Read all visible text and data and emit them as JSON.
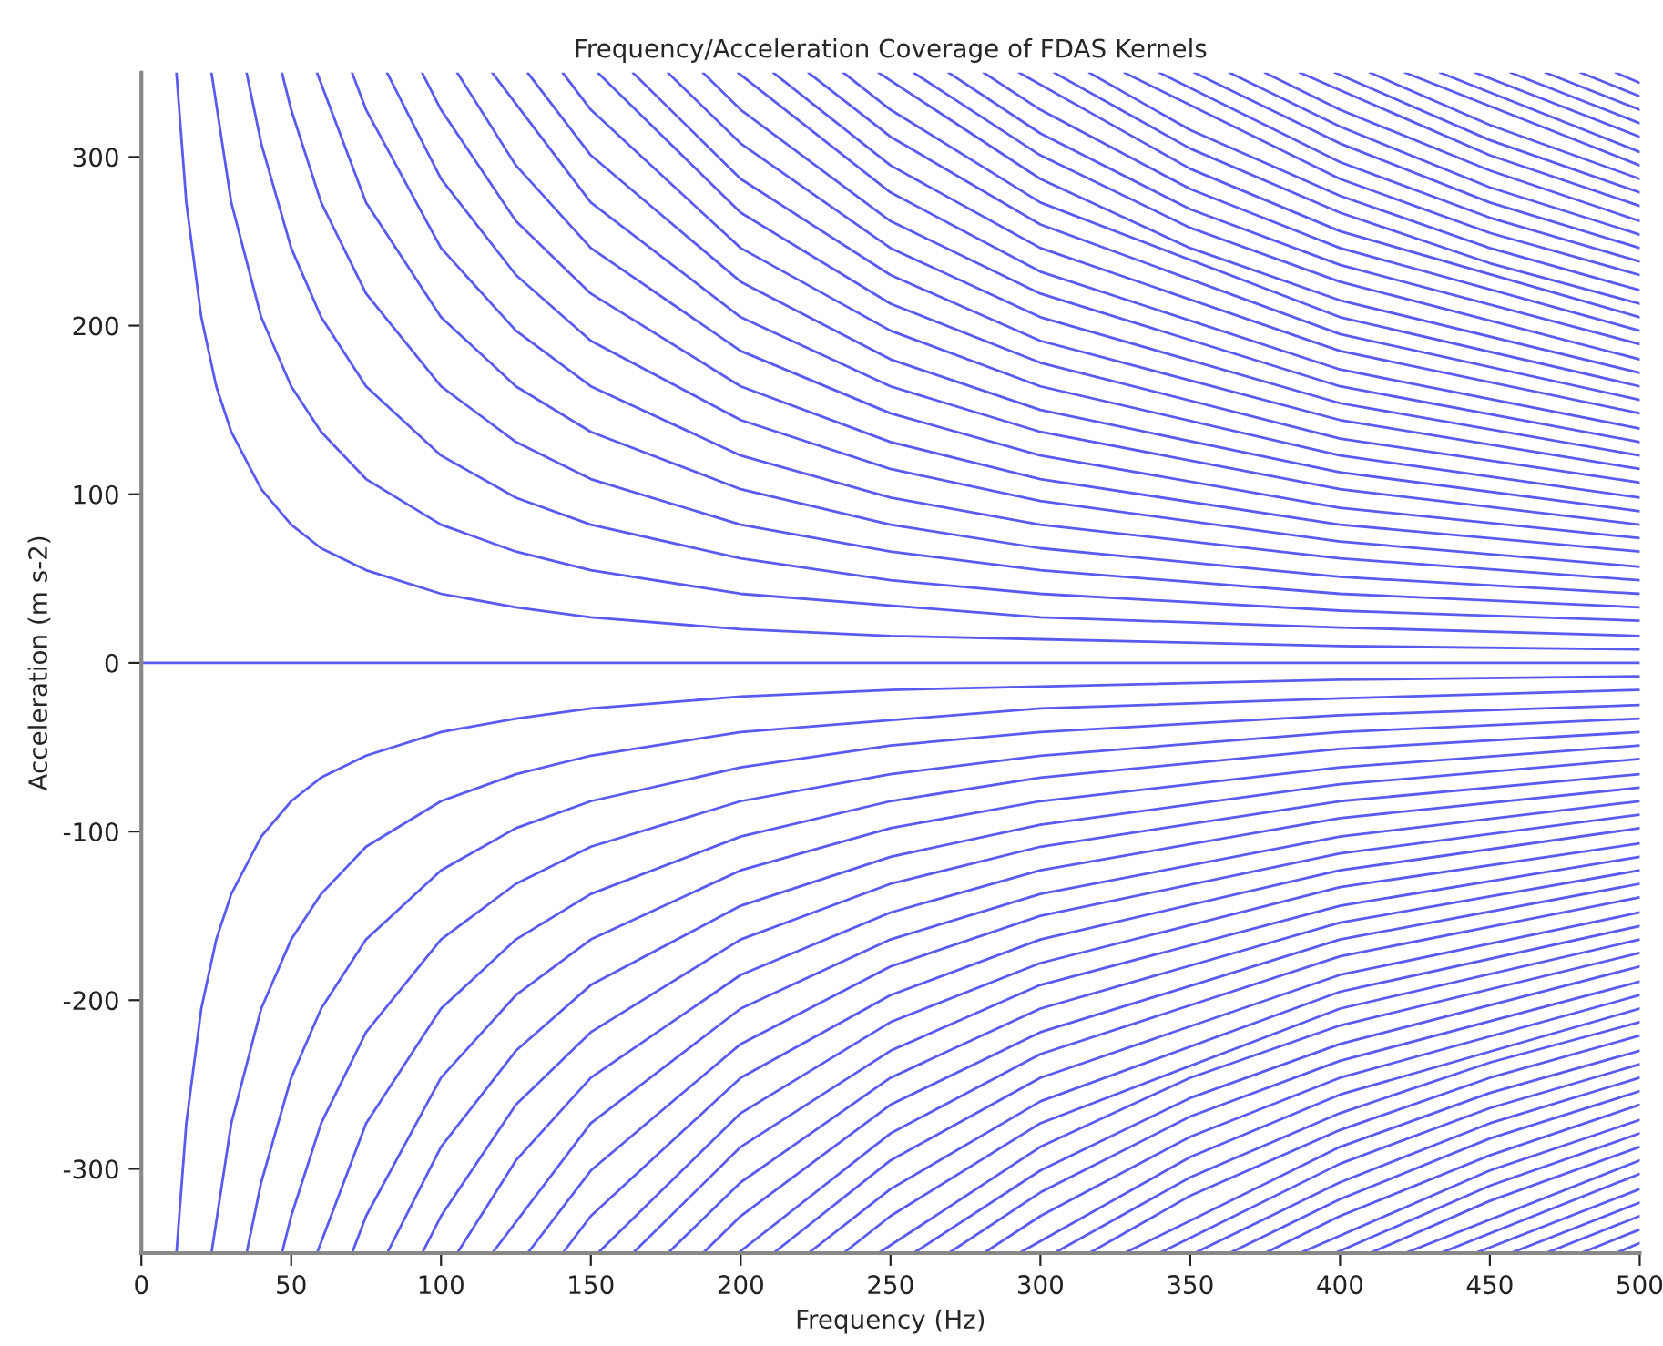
{
  "chart_data": {
    "type": "line",
    "title": "Frequency/Acceleration Coverage of FDAS Kernels",
    "xlabel": "Frequency (Hz)",
    "ylabel": "Acceleration (m s-2)",
    "xlim": [
      0,
      500
    ],
    "ylim": [
      -350,
      350
    ],
    "xticks": [
      0,
      50,
      100,
      150,
      200,
      250,
      300,
      350,
      400,
      450,
      500
    ],
    "yticks": [
      -300,
      -200,
      -100,
      0,
      100,
      200,
      300
    ],
    "grid": false,
    "legend": false,
    "marker": "none",
    "line_style": "solid",
    "series": [
      {
        "color": "#5a5af0",
        "x": [
          0,
          500
        ],
        "values": [
          0,
          0
        ]
      },
      {
        "color": "#5a5af0",
        "x": [
          11.7,
          15,
          20,
          25,
          30,
          40,
          50,
          60,
          75,
          100,
          125,
          150,
          200,
          250,
          300,
          400,
          500
        ],
        "values": [
          350,
          273,
          205,
          164,
          137,
          103,
          82,
          68,
          55,
          41,
          33,
          27,
          20,
          16,
          14,
          10,
          8
        ]
      },
      {
        "color": "#5a5af0",
        "x": [
          23.4,
          30,
          40,
          50,
          60,
          75,
          100,
          125,
          150,
          200,
          300,
          400,
          500
        ],
        "values": [
          350,
          273,
          205,
          164,
          137,
          109,
          82,
          66,
          55,
          41,
          27,
          21,
          16
        ]
      },
      {
        "color": "#5a5af0",
        "x": [
          35.1,
          40,
          50,
          60,
          75,
          100,
          125,
          150,
          200,
          250,
          300,
          400,
          500
        ],
        "values": [
          350,
          308,
          246,
          205,
          164,
          123,
          98,
          82,
          62,
          49,
          41,
          31,
          25
        ]
      },
      {
        "color": "#5a5af0",
        "x": [
          46.9,
          50,
          60,
          75,
          100,
          125,
          150,
          200,
          250,
          300,
          400,
          500
        ],
        "values": [
          350,
          328,
          273,
          219,
          164,
          131,
          109,
          82,
          66,
          55,
          41,
          33
        ]
      },
      {
        "color": "#5a5af0",
        "x": [
          58.6,
          75,
          100,
          125,
          150,
          200,
          250,
          300,
          400,
          500
        ],
        "values": [
          350,
          273,
          205,
          164,
          137,
          103,
          82,
          68,
          51,
          41
        ]
      },
      {
        "color": "#5a5af0",
        "x": [
          70.3,
          75,
          100,
          125,
          150,
          200,
          250,
          300,
          400,
          500
        ],
        "values": [
          350,
          328,
          246,
          197,
          164,
          123,
          98,
          82,
          62,
          49
        ]
      },
      {
        "color": "#5a5af0",
        "x": [
          82,
          100,
          125,
          150,
          200,
          250,
          300,
          400,
          500
        ],
        "values": [
          350,
          287,
          230,
          191,
          144,
          115,
          96,
          72,
          57
        ]
      },
      {
        "color": "#5a5af0",
        "x": [
          93.7,
          100,
          125,
          150,
          200,
          250,
          300,
          400,
          500
        ],
        "values": [
          350,
          328,
          262,
          219,
          164,
          131,
          109,
          82,
          66
        ]
      },
      {
        "color": "#5a5af0",
        "x": [
          105.4,
          125,
          150,
          200,
          250,
          300,
          400,
          500
        ],
        "values": [
          350,
          295,
          246,
          185,
          148,
          123,
          92,
          74
        ]
      },
      {
        "color": "#5a5af0",
        "x": [
          117.1,
          150,
          200,
          250,
          300,
          400,
          500
        ],
        "values": [
          350,
          273,
          205,
          164,
          137,
          103,
          82
        ]
      },
      {
        "color": "#5a5af0",
        "x": [
          128.9,
          150,
          200,
          250,
          300,
          400,
          500
        ],
        "values": [
          350,
          301,
          226,
          180,
          150,
          113,
          90
        ]
      },
      {
        "color": "#5a5af0",
        "x": [
          140.6,
          150,
          200,
          250,
          300,
          400,
          500
        ],
        "values": [
          350,
          328,
          246,
          197,
          164,
          123,
          98
        ]
      },
      {
        "color": "#5a5af0",
        "x": [
          152.3,
          200,
          250,
          300,
          400,
          500
        ],
        "values": [
          350,
          267,
          213,
          178,
          133,
          107
        ]
      },
      {
        "color": "#5a5af0",
        "x": [
          164,
          200,
          250,
          300,
          400,
          500
        ],
        "values": [
          350,
          287,
          230,
          191,
          144,
          115
        ]
      },
      {
        "color": "#5a5af0",
        "x": [
          175.7,
          200,
          250,
          300,
          400,
          500
        ],
        "values": [
          350,
          308,
          246,
          205,
          154,
          123
        ]
      },
      {
        "color": "#5a5af0",
        "x": [
          187.4,
          200,
          250,
          300,
          400,
          500
        ],
        "values": [
          350,
          328,
          262,
          219,
          164,
          131
        ]
      },
      {
        "color": "#5a5af0",
        "x": [
          199.1,
          250,
          300,
          400,
          500
        ],
        "values": [
          350,
          279,
          232,
          174,
          139
        ]
      },
      {
        "color": "#5a5af0",
        "x": [
          210.9,
          250,
          300,
          400,
          500
        ],
        "values": [
          350,
          295,
          246,
          185,
          148
        ]
      },
      {
        "color": "#5a5af0",
        "x": [
          222.6,
          250,
          300,
          400,
          500
        ],
        "values": [
          350,
          312,
          260,
          195,
          156
        ]
      },
      {
        "color": "#5a5af0",
        "x": [
          234.3,
          250,
          300,
          400,
          500
        ],
        "values": [
          350,
          328,
          273,
          205,
          164
        ]
      },
      {
        "color": "#5a5af0",
        "x": [
          246,
          300,
          350,
          400,
          500
        ],
        "values": [
          350,
          287,
          246,
          215,
          172
        ]
      },
      {
        "color": "#5a5af0",
        "x": [
          257.7,
          300,
          350,
          400,
          500
        ],
        "values": [
          350,
          301,
          258,
          226,
          180
        ]
      },
      {
        "color": "#5a5af0",
        "x": [
          269.4,
          300,
          350,
          400,
          500
        ],
        "values": [
          350,
          314,
          269,
          236,
          189
        ]
      },
      {
        "color": "#5a5af0",
        "x": [
          281.1,
          300,
          350,
          400,
          500
        ],
        "values": [
          350,
          328,
          281,
          246,
          197
        ]
      },
      {
        "color": "#5a5af0",
        "x": [
          292.9,
          350,
          400,
          500
        ],
        "values": [
          350,
          293,
          256,
          205
        ]
      },
      {
        "color": "#5a5af0",
        "x": [
          304.6,
          350,
          400,
          450,
          500
        ],
        "values": [
          350,
          305,
          267,
          237,
          213
        ]
      },
      {
        "color": "#5a5af0",
        "x": [
          316.3,
          350,
          400,
          450,
          500
        ],
        "values": [
          350,
          316,
          277,
          246,
          221
        ]
      },
      {
        "color": "#5a5af0",
        "x": [
          328,
          400,
          450,
          500
        ],
        "values": [
          350,
          287,
          255,
          230
        ]
      },
      {
        "color": "#5a5af0",
        "x": [
          339.7,
          400,
          450,
          500
        ],
        "values": [
          350,
          297,
          264,
          238
        ]
      },
      {
        "color": "#5a5af0",
        "x": [
          351.4,
          400,
          450,
          500
        ],
        "values": [
          350,
          308,
          273,
          246
        ]
      },
      {
        "color": "#5a5af0",
        "x": [
          363.1,
          400,
          450,
          500
        ],
        "values": [
          350,
          318,
          282,
          254
        ]
      },
      {
        "color": "#5a5af0",
        "x": [
          374.9,
          400,
          450,
          500
        ],
        "values": [
          350,
          328,
          292,
          262
        ]
      },
      {
        "color": "#5a5af0",
        "x": [
          386.6,
          450,
          500
        ],
        "values": [
          350,
          301,
          271
        ]
      },
      {
        "color": "#5a5af0",
        "x": [
          398.3,
          450,
          500
        ],
        "values": [
          350,
          310,
          279
        ]
      },
      {
        "color": "#5a5af0",
        "x": [
          410,
          450,
          500
        ],
        "values": [
          350,
          319,
          287
        ]
      },
      {
        "color": "#5a5af0",
        "x": [
          421.7,
          500
        ],
        "values": [
          350,
          295
        ]
      },
      {
        "color": "#5a5af0",
        "x": [
          433.4,
          500
        ],
        "values": [
          350,
          303
        ]
      },
      {
        "color": "#5a5af0",
        "x": [
          445.1,
          500
        ],
        "values": [
          350,
          312
        ]
      },
      {
        "color": "#5a5af0",
        "x": [
          456.9,
          500
        ],
        "values": [
          350,
          320
        ]
      },
      {
        "color": "#5a5af0",
        "x": [
          468.6,
          500
        ],
        "values": [
          350,
          328
        ]
      },
      {
        "color": "#5a5af0",
        "x": [
          480.3,
          500
        ],
        "values": [
          350,
          336
        ]
      },
      {
        "color": "#5a5af0",
        "x": [
          492,
          500
        ],
        "values": [
          350,
          344
        ]
      },
      {
        "color": "#5a5af0",
        "x": [
          11.7,
          15,
          20,
          25,
          30,
          40,
          50,
          60,
          75,
          100,
          125,
          150,
          200,
          250,
          300,
          400,
          500
        ],
        "values": [
          -350,
          -273,
          -205,
          -164,
          -137,
          -103,
          -82,
          -68,
          -55,
          -41,
          -33,
          -27,
          -20,
          -16,
          -14,
          -10,
          -8
        ]
      },
      {
        "color": "#5a5af0",
        "x": [
          23.4,
          30,
          40,
          50,
          60,
          75,
          100,
          125,
          150,
          200,
          300,
          400,
          500
        ],
        "values": [
          -350,
          -273,
          -205,
          -164,
          -137,
          -109,
          -82,
          -66,
          -55,
          -41,
          -27,
          -21,
          -16
        ]
      },
      {
        "color": "#5a5af0",
        "x": [
          35.1,
          40,
          50,
          60,
          75,
          100,
          125,
          150,
          200,
          250,
          300,
          400,
          500
        ],
        "values": [
          -350,
          -308,
          -246,
          -205,
          -164,
          -123,
          -98,
          -82,
          -62,
          -49,
          -41,
          -31,
          -25
        ]
      },
      {
        "color": "#5a5af0",
        "x": [
          46.9,
          50,
          60,
          75,
          100,
          125,
          150,
          200,
          250,
          300,
          400,
          500
        ],
        "values": [
          -350,
          -328,
          -273,
          -219,
          -164,
          -131,
          -109,
          -82,
          -66,
          -55,
          -41,
          -33
        ]
      },
      {
        "color": "#5a5af0",
        "x": [
          58.6,
          75,
          100,
          125,
          150,
          200,
          250,
          300,
          400,
          500
        ],
        "values": [
          -350,
          -273,
          -205,
          -164,
          -137,
          -103,
          -82,
          -68,
          -51,
          -41
        ]
      },
      {
        "color": "#5a5af0",
        "x": [
          70.3,
          75,
          100,
          125,
          150,
          200,
          250,
          300,
          400,
          500
        ],
        "values": [
          -350,
          -328,
          -246,
          -197,
          -164,
          -123,
          -98,
          -82,
          -62,
          -49
        ]
      },
      {
        "color": "#5a5af0",
        "x": [
          82,
          100,
          125,
          150,
          200,
          250,
          300,
          400,
          500
        ],
        "values": [
          -350,
          -287,
          -230,
          -191,
          -144,
          -115,
          -96,
          -72,
          -57
        ]
      },
      {
        "color": "#5a5af0",
        "x": [
          93.7,
          100,
          125,
          150,
          200,
          250,
          300,
          400,
          500
        ],
        "values": [
          -350,
          -328,
          -262,
          -219,
          -164,
          -131,
          -109,
          -82,
          -66
        ]
      },
      {
        "color": "#5a5af0",
        "x": [
          105.4,
          125,
          150,
          200,
          250,
          300,
          400,
          500
        ],
        "values": [
          -350,
          -295,
          -246,
          -185,
          -148,
          -123,
          -92,
          -74
        ]
      },
      {
        "color": "#5a5af0",
        "x": [
          117.1,
          150,
          200,
          250,
          300,
          400,
          500
        ],
        "values": [
          -350,
          -273,
          -205,
          -164,
          -137,
          -103,
          -82
        ]
      },
      {
        "color": "#5a5af0",
        "x": [
          128.9,
          150,
          200,
          250,
          300,
          400,
          500
        ],
        "values": [
          -350,
          -301,
          -226,
          -180,
          -150,
          -113,
          -90
        ]
      },
      {
        "color": "#5a5af0",
        "x": [
          140.6,
          150,
          200,
          250,
          300,
          400,
          500
        ],
        "values": [
          -350,
          -328,
          -246,
          -197,
          -164,
          -123,
          -98
        ]
      },
      {
        "color": "#5a5af0",
        "x": [
          152.3,
          200,
          250,
          300,
          400,
          500
        ],
        "values": [
          -350,
          -267,
          -213,
          -178,
          -133,
          -107
        ]
      },
      {
        "color": "#5a5af0",
        "x": [
          164,
          200,
          250,
          300,
          400,
          500
        ],
        "values": [
          -350,
          -287,
          -230,
          -191,
          -144,
          -115
        ]
      },
      {
        "color": "#5a5af0",
        "x": [
          175.7,
          200,
          250,
          300,
          400,
          500
        ],
        "values": [
          -350,
          -308,
          -246,
          -205,
          -154,
          -123
        ]
      },
      {
        "color": "#5a5af0",
        "x": [
          187.4,
          200,
          250,
          300,
          400,
          500
        ],
        "values": [
          -350,
          -328,
          -262,
          -219,
          -164,
          -131
        ]
      },
      {
        "color": "#5a5af0",
        "x": [
          199.1,
          250,
          300,
          400,
          500
        ],
        "values": [
          -350,
          -279,
          -232,
          -174,
          -139
        ]
      },
      {
        "color": "#5a5af0",
        "x": [
          210.9,
          250,
          300,
          400,
          500
        ],
        "values": [
          -350,
          -295,
          -246,
          -185,
          -148
        ]
      },
      {
        "color": "#5a5af0",
        "x": [
          222.6,
          250,
          300,
          400,
          500
        ],
        "values": [
          -350,
          -312,
          -260,
          -195,
          -156
        ]
      },
      {
        "color": "#5a5af0",
        "x": [
          234.3,
          250,
          300,
          400,
          500
        ],
        "values": [
          -350,
          -328,
          -273,
          -205,
          -164
        ]
      },
      {
        "color": "#5a5af0",
        "x": [
          246,
          300,
          350,
          400,
          500
        ],
        "values": [
          -350,
          -287,
          -246,
          -215,
          -172
        ]
      },
      {
        "color": "#5a5af0",
        "x": [
          257.7,
          300,
          350,
          400,
          500
        ],
        "values": [
          -350,
          -301,
          -258,
          -226,
          -180
        ]
      },
      {
        "color": "#5a5af0",
        "x": [
          269.4,
          300,
          350,
          400,
          500
        ],
        "values": [
          -350,
          -314,
          -269,
          -236,
          -189
        ]
      },
      {
        "color": "#5a5af0",
        "x": [
          281.1,
          300,
          350,
          400,
          500
        ],
        "values": [
          -350,
          -328,
          -281,
          -246,
          -197
        ]
      },
      {
        "color": "#5a5af0",
        "x": [
          292.9,
          350,
          400,
          500
        ],
        "values": [
          -350,
          -293,
          -256,
          -205
        ]
      },
      {
        "color": "#5a5af0",
        "x": [
          304.6,
          350,
          400,
          450,
          500
        ],
        "values": [
          -350,
          -305,
          -267,
          -237,
          -213
        ]
      },
      {
        "color": "#5a5af0",
        "x": [
          316.3,
          350,
          400,
          450,
          500
        ],
        "values": [
          -350,
          -316,
          -277,
          -246,
          -221
        ]
      },
      {
        "color": "#5a5af0",
        "x": [
          328,
          400,
          450,
          500
        ],
        "values": [
          -350,
          -287,
          -255,
          -230
        ]
      },
      {
        "color": "#5a5af0",
        "x": [
          339.7,
          400,
          450,
          500
        ],
        "values": [
          -350,
          -297,
          -264,
          -238
        ]
      },
      {
        "color": "#5a5af0",
        "x": [
          351.4,
          400,
          450,
          500
        ],
        "values": [
          -350,
          -308,
          -273,
          -246
        ]
      },
      {
        "color": "#5a5af0",
        "x": [
          363.1,
          400,
          450,
          500
        ],
        "values": [
          -350,
          -318,
          -282,
          -254
        ]
      },
      {
        "color": "#5a5af0",
        "x": [
          374.9,
          400,
          450,
          500
        ],
        "values": [
          -350,
          -328,
          -292,
          -262
        ]
      },
      {
        "color": "#5a5af0",
        "x": [
          386.6,
          450,
          500
        ],
        "values": [
          -350,
          -301,
          -271
        ]
      },
      {
        "color": "#5a5af0",
        "x": [
          398.3,
          450,
          500
        ],
        "values": [
          -350,
          -310,
          -279
        ]
      },
      {
        "color": "#5a5af0",
        "x": [
          410,
          450,
          500
        ],
        "values": [
          -350,
          -319,
          -287
        ]
      },
      {
        "color": "#5a5af0",
        "x": [
          421.7,
          500
        ],
        "values": [
          -350,
          -295
        ]
      },
      {
        "color": "#5a5af0",
        "x": [
          433.4,
          500
        ],
        "values": [
          -350,
          -303
        ]
      },
      {
        "color": "#5a5af0",
        "x": [
          445.1,
          500
        ],
        "values": [
          -350,
          -312
        ]
      },
      {
        "color": "#5a5af0",
        "x": [
          456.9,
          500
        ],
        "values": [
          -350,
          -320
        ]
      },
      {
        "color": "#5a5af0",
        "x": [
          468.6,
          500
        ],
        "values": [
          -350,
          -328
        ]
      },
      {
        "color": "#5a5af0",
        "x": [
          480.3,
          500
        ],
        "values": [
          -350,
          -336
        ]
      },
      {
        "color": "#5a5af0",
        "x": [
          492,
          500
        ],
        "values": [
          -350,
          -344
        ]
      }
    ]
  }
}
